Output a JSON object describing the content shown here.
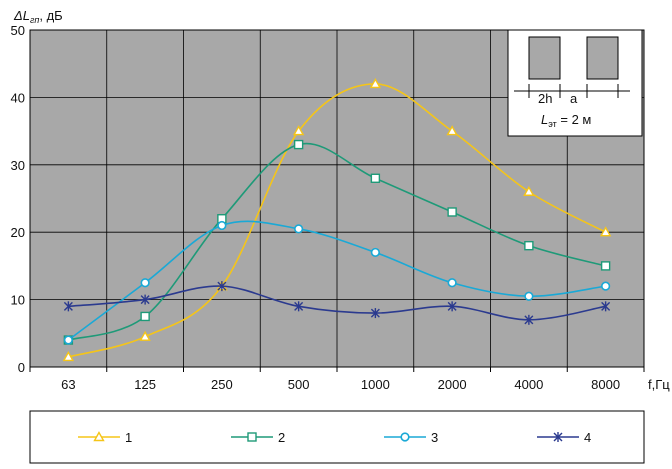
{
  "chart_data": {
    "type": "line",
    "title": "",
    "ylabel": "ΔL гп, дБ",
    "ylabel_main": "ΔL",
    "ylabel_sub": "гп",
    "ylabel_unit": ", дБ",
    "xlabel": "f,Гц",
    "x_scale": "log2",
    "categories": [
      "63",
      "125",
      "250",
      "500",
      "1000",
      "2000",
      "4000",
      "8000"
    ],
    "ylim": [
      0,
      50
    ],
    "yticks": [
      0,
      10,
      20,
      30,
      40,
      50
    ],
    "grid": true,
    "plot_background": "#a8a8a8",
    "series": [
      {
        "name": "1",
        "color": "#f5c518",
        "marker": "triangle",
        "values": [
          1.5,
          4.5,
          12,
          35,
          42,
          35,
          26,
          20
        ]
      },
      {
        "name": "2",
        "color": "#1e9a78",
        "marker": "square",
        "values": [
          4,
          7.5,
          22,
          33,
          28,
          23,
          18,
          15
        ]
      },
      {
        "name": "3",
        "color": "#1aa9d6",
        "marker": "circle",
        "values": [
          4,
          12.5,
          21,
          20.5,
          17,
          12.5,
          10.5,
          12
        ]
      },
      {
        "name": "4",
        "color": "#2b3a8f",
        "marker": "star",
        "values": [
          9,
          10,
          12,
          9,
          8,
          9,
          7,
          9
        ]
      }
    ],
    "legend_position": "bottom",
    "inset": {
      "label_2h": "2h",
      "label_a": "a",
      "formula_main": "L",
      "formula_sub": "эт",
      "formula_rest": " = 2 м"
    }
  }
}
